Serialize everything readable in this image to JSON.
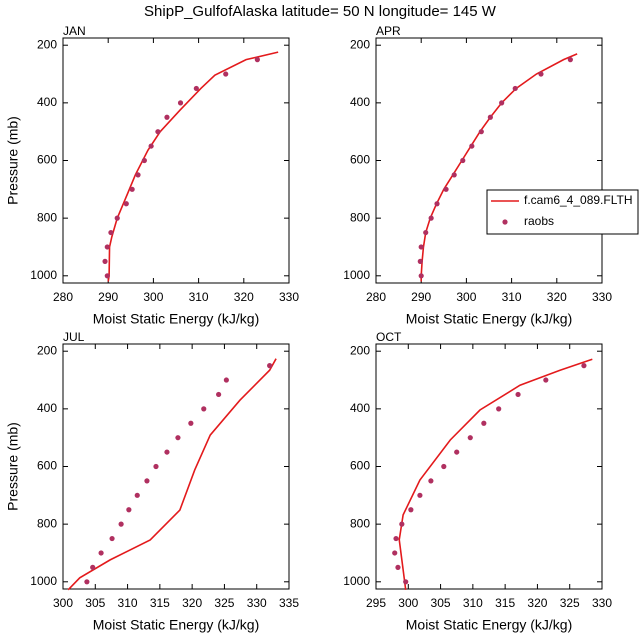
{
  "title": "ShipP_GulfofAlaska  latitude= 50 N longitude= 145 W",
  "chart_data": [
    {
      "type": "line",
      "title": "JAN",
      "xlabel": "Moist Static Energy (kJ/kg)",
      "ylabel": "Pressure (mb)",
      "xlim": [
        280,
        330
      ],
      "xticks": [
        280,
        290,
        300,
        310,
        320,
        330
      ],
      "ylim": [
        1025,
        175
      ],
      "yticks": [
        200,
        400,
        600,
        800,
        1000
      ],
      "series": [
        {
          "type": "line",
          "color": "#e31a1c",
          "x": [
            290,
            290.2,
            290.3,
            290.8,
            292,
            293.7,
            296,
            298.8,
            301.5,
            305.9,
            310.5,
            313.6,
            320.5,
            327.6
          ],
          "values": [
            1020,
            1000,
            900,
            865,
            800,
            737,
            650,
            564,
            500,
            425,
            350,
            304,
            250,
            224
          ]
        },
        {
          "type": "scatter",
          "color": "#b03060",
          "x": [
            289.8,
            289.3,
            289.8,
            290.6,
            292,
            294,
            295.3,
            296.6,
            298,
            299.5,
            301,
            303,
            306,
            309.5,
            316,
            323
          ],
          "values": [
            1000,
            950,
            900,
            850,
            800,
            750,
            700,
            650,
            600,
            550,
            500,
            450,
            400,
            350,
            300,
            250
          ]
        }
      ]
    },
    {
      "type": "line",
      "title": "APR",
      "xlabel": "Moist Static Energy (kJ/kg)",
      "xlim": [
        280,
        330
      ],
      "xticks": [
        280,
        290,
        300,
        310,
        320,
        330
      ],
      "ylim": [
        1025,
        175
      ],
      "yticks": [
        200,
        400,
        600,
        800,
        1000
      ],
      "legend": "right",
      "series": [
        {
          "name": "f.cam6_4_089.FLTH",
          "type": "line",
          "color": "#e31a1c",
          "x": [
            290,
            290,
            290.2,
            290.5,
            291,
            292,
            293.4,
            295,
            297,
            299,
            301,
            303,
            305.3,
            307.8,
            311,
            315.5,
            321.5,
            324.5
          ],
          "values": [
            1020,
            1000,
            950,
            900,
            850,
            800,
            750,
            700,
            650,
            600,
            550,
            500,
            450,
            400,
            350,
            300,
            250,
            230
          ]
        },
        {
          "name": "raobs",
          "type": "scatter",
          "color": "#b03060",
          "x": [
            290,
            289.8,
            290,
            291,
            292.2,
            293.5,
            295.5,
            297.3,
            299.2,
            301.2,
            303.3,
            305.3,
            307.8,
            310.8,
            316.5,
            323
          ],
          "values": [
            1000,
            950,
            900,
            850,
            800,
            750,
            700,
            650,
            600,
            550,
            500,
            450,
            400,
            350,
            300,
            250
          ]
        }
      ]
    },
    {
      "type": "line",
      "title": "JUL",
      "xlabel": "Moist Static Energy (kJ/kg)",
      "ylabel": "Pressure (mb)",
      "xlim": [
        300,
        335
      ],
      "xticks": [
        300,
        305,
        310,
        315,
        320,
        325,
        330,
        335
      ],
      "ylim": [
        1025,
        175
      ],
      "yticks": [
        200,
        400,
        600,
        800,
        1000
      ],
      "series": [
        {
          "type": "line",
          "color": "#e31a1c",
          "x": [
            300.8,
            302.6,
            307.3,
            313.5,
            318.1,
            320.4,
            322.8,
            327.4,
            332,
            333
          ],
          "values": [
            1028,
            986,
            924,
            855,
            751,
            612,
            491,
            370,
            266,
            226
          ]
        },
        {
          "type": "scatter",
          "color": "#b03060",
          "x": [
            303.7,
            304.6,
            305.9,
            307.6,
            309,
            310.2,
            311.5,
            313,
            314.4,
            316.1,
            317.8,
            319.8,
            321.8,
            324.1,
            325.3,
            332
          ],
          "values": [
            1000,
            950,
            900,
            850,
            800,
            750,
            700,
            650,
            600,
            550,
            500,
            450,
            400,
            350,
            300,
            250
          ]
        }
      ]
    },
    {
      "type": "line",
      "title": "OCT",
      "xlabel": "Moist Static Energy (kJ/kg)",
      "xlim": [
        295,
        330
      ],
      "xticks": [
        295,
        300,
        305,
        310,
        315,
        320,
        325,
        330
      ],
      "ylim": [
        1025,
        175
      ],
      "yticks": [
        200,
        400,
        600,
        800,
        1000
      ],
      "series": [
        {
          "type": "line",
          "color": "#e31a1c",
          "x": [
            299.6,
            299.2,
            298.6,
            299.2,
            301.8,
            306.5,
            311.1,
            317.3,
            323.5,
            328.5
          ],
          "values": [
            1028,
            958,
            854,
            768,
            647,
            508,
            404,
            318,
            266,
            228
          ]
        },
        {
          "type": "scatter",
          "color": "#b03060",
          "x": [
            299.6,
            298.4,
            297.9,
            298.1,
            299,
            300.4,
            301.8,
            303.5,
            305.5,
            307.5,
            309.6,
            311.7,
            314,
            317,
            321.3,
            327.2
          ],
          "values": [
            1000,
            950,
            900,
            850,
            800,
            750,
            700,
            650,
            600,
            550,
            500,
            450,
            400,
            350,
            300,
            250
          ]
        }
      ]
    }
  ]
}
